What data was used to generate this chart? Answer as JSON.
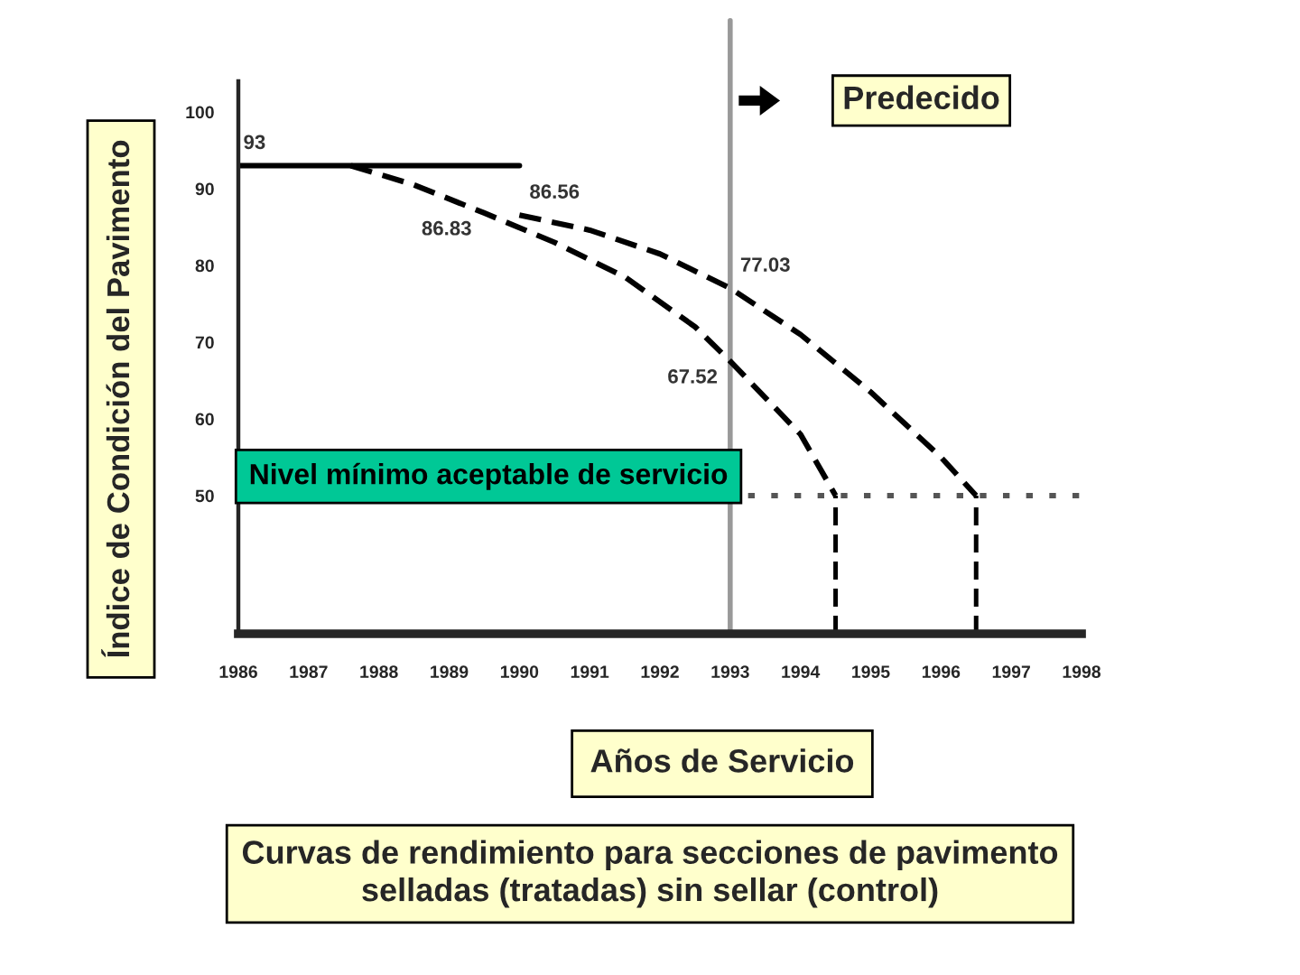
{
  "chart_data": {
    "type": "line",
    "title": "Curvas de rendimiento para secciones de pavimento\nselladas (tratadas) sin sellar (control)",
    "xlabel": "Años de Servicio",
    "ylabel": "Índice de Condición del Pavimento",
    "annotations": [
      "Predecido"
    ],
    "xlim": [
      1986,
      1998
    ],
    "xticks": [
      1986,
      1987,
      1988,
      1989,
      1990,
      1991,
      1992,
      1993,
      1994,
      1995,
      1996,
      1997,
      1998
    ],
    "ylim": [
      32,
      104
    ],
    "yticks": [
      50,
      60,
      70,
      80,
      90,
      100
    ],
    "series": [
      {
        "color": "#000000",
        "line_style": "solid",
        "x": [
          1986,
          1990
        ],
        "values": [
          93,
          93
        ],
        "value_labels": [
          "93",
          null
        ]
      },
      {
        "color": "#000000",
        "line_style": "dashed",
        "x": [
          1990,
          1991,
          1992,
          1993,
          1994,
          1995,
          1996,
          1996.5
        ],
        "values": [
          86.56,
          84.6,
          81.5,
          77.03,
          71,
          63.5,
          55,
          50
        ],
        "value_labels": [
          "86.56",
          null,
          null,
          "77.03",
          null,
          null,
          null,
          null
        ]
      },
      {
        "color": "#000000",
        "line_style": "dashed",
        "x": [
          1987.6,
          1988.5,
          1989.5,
          1990.5,
          1991.5,
          1992.5,
          1993,
          1994,
          1994.5
        ],
        "values": [
          93,
          90.5,
          86.83,
          83,
          78.5,
          72,
          67.52,
          58,
          50
        ],
        "value_labels": [
          null,
          null,
          "86.83",
          null,
          null,
          null,
          "67.52",
          null,
          null
        ]
      }
    ],
    "ref_lines": [
      {
        "axis": "x",
        "value": 1993,
        "color": "#999999",
        "line_style": "solid"
      },
      {
        "axis": "y",
        "value": 50,
        "label": "Nivel mínimo aceptable de servicio",
        "color": "#555555",
        "line_style": "dotted"
      },
      {
        "axis": "x",
        "value": 1994.5,
        "color": "#000000",
        "line_style": "dashed"
      },
      {
        "axis": "x",
        "value": 1996.5,
        "color": "#000000",
        "line_style": "dashed"
      }
    ],
    "grid": false,
    "legend": false,
    "marker": "none"
  }
}
